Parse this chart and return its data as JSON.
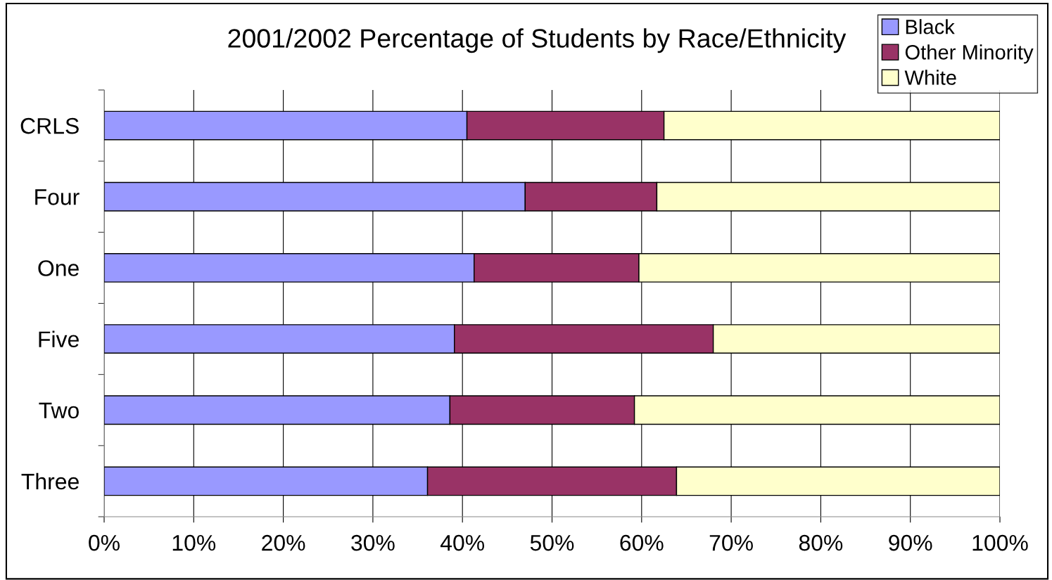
{
  "chart_data": {
    "type": "bar",
    "orientation": "horizontal",
    "stacked": true,
    "title": "2001/2002 Percentage of Students by Race/Ethnicity",
    "categories": [
      "CRLS",
      "Four",
      "One",
      "Five",
      "Two",
      "Three"
    ],
    "series": [
      {
        "name": "Black",
        "color": "#9999ff",
        "values": [
          40.5,
          47.0,
          41.3,
          39.1,
          38.6,
          36.1
        ]
      },
      {
        "name": "Other Minority",
        "color": "#993366",
        "values": [
          22.0,
          14.7,
          18.4,
          28.9,
          20.6,
          27.8
        ]
      },
      {
        "name": "White",
        "color": "#ffffcc",
        "values": [
          37.5,
          38.3,
          40.3,
          32.0,
          40.8,
          36.1
        ]
      }
    ],
    "xlim": [
      0,
      100
    ],
    "xticks": [
      {
        "value": 0,
        "label": "0%"
      },
      {
        "value": 10,
        "label": "10%"
      },
      {
        "value": 20,
        "label": "20%"
      },
      {
        "value": 30,
        "label": "30%"
      },
      {
        "value": 40,
        "label": "40%"
      },
      {
        "value": 50,
        "label": "50%"
      },
      {
        "value": 60,
        "label": "60%"
      },
      {
        "value": 70,
        "label": "70%"
      },
      {
        "value": 80,
        "label": "80%"
      },
      {
        "value": 90,
        "label": "90%"
      },
      {
        "value": 100,
        "label": "100%"
      }
    ],
    "grid": "x",
    "legend": "top right"
  }
}
